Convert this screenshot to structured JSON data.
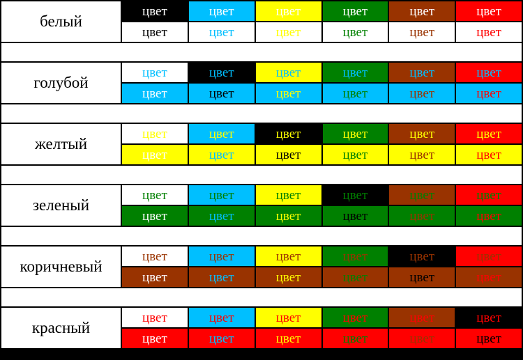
{
  "table": {
    "cell_text": "цвет",
    "palette": {
      "white": "#FFFFFF",
      "blue": "#00BFFF",
      "yellow": "#FFFF00",
      "green": "#008000",
      "brown": "#993300",
      "red": "#FF0000",
      "black": "#000000"
    },
    "groups": [
      {
        "label": "белый",
        "row_color": "#FFFFFF",
        "top": [
          {
            "fg": "#FFFFFF",
            "bg": "#000000"
          },
          {
            "fg": "#FFFFFF",
            "bg": "#00BFFF"
          },
          {
            "fg": "#FFFFFF",
            "bg": "#FFFF00"
          },
          {
            "fg": "#FFFFFF",
            "bg": "#008000"
          },
          {
            "fg": "#FFFFFF",
            "bg": "#993300"
          },
          {
            "fg": "#FFFFFF",
            "bg": "#FF0000"
          }
        ],
        "bottom": [
          {
            "fg": "#000000",
            "bg": "#FFFFFF"
          },
          {
            "fg": "#00BFFF",
            "bg": "#FFFFFF"
          },
          {
            "fg": "#FFFF00",
            "bg": "#FFFFFF"
          },
          {
            "fg": "#008000",
            "bg": "#FFFFFF"
          },
          {
            "fg": "#993300",
            "bg": "#FFFFFF"
          },
          {
            "fg": "#FF0000",
            "bg": "#FFFFFF"
          }
        ]
      },
      {
        "label": "голубой",
        "row_color": "#00BFFF",
        "top": [
          {
            "fg": "#00BFFF",
            "bg": "#FFFFFF"
          },
          {
            "fg": "#00BFFF",
            "bg": "#000000"
          },
          {
            "fg": "#00BFFF",
            "bg": "#FFFF00"
          },
          {
            "fg": "#00BFFF",
            "bg": "#008000"
          },
          {
            "fg": "#00BFFF",
            "bg": "#993300"
          },
          {
            "fg": "#00BFFF",
            "bg": "#FF0000"
          }
        ],
        "bottom": [
          {
            "fg": "#FFFFFF",
            "bg": "#00BFFF"
          },
          {
            "fg": "#000000",
            "bg": "#00BFFF"
          },
          {
            "fg": "#FFFF00",
            "bg": "#00BFFF"
          },
          {
            "fg": "#008000",
            "bg": "#00BFFF"
          },
          {
            "fg": "#993300",
            "bg": "#00BFFF"
          },
          {
            "fg": "#FF0000",
            "bg": "#00BFFF"
          }
        ]
      },
      {
        "label": "желтый",
        "row_color": "#FFFF00",
        "top": [
          {
            "fg": "#FFFF00",
            "bg": "#FFFFFF"
          },
          {
            "fg": "#FFFF00",
            "bg": "#00BFFF"
          },
          {
            "fg": "#FFFF00",
            "bg": "#000000"
          },
          {
            "fg": "#FFFF00",
            "bg": "#008000"
          },
          {
            "fg": "#FFFF00",
            "bg": "#993300"
          },
          {
            "fg": "#FFFF00",
            "bg": "#FF0000"
          }
        ],
        "bottom": [
          {
            "fg": "#FFFFFF",
            "bg": "#FFFF00"
          },
          {
            "fg": "#00BFFF",
            "bg": "#FFFF00"
          },
          {
            "fg": "#000000",
            "bg": "#FFFF00"
          },
          {
            "fg": "#008000",
            "bg": "#FFFF00"
          },
          {
            "fg": "#993300",
            "bg": "#FFFF00"
          },
          {
            "fg": "#FF0000",
            "bg": "#FFFF00"
          }
        ]
      },
      {
        "label": "зеленый",
        "row_color": "#008000",
        "top": [
          {
            "fg": "#008000",
            "bg": "#FFFFFF"
          },
          {
            "fg": "#008000",
            "bg": "#00BFFF"
          },
          {
            "fg": "#008000",
            "bg": "#FFFF00"
          },
          {
            "fg": "#008000",
            "bg": "#000000"
          },
          {
            "fg": "#008000",
            "bg": "#993300"
          },
          {
            "fg": "#008000",
            "bg": "#FF0000"
          }
        ],
        "bottom": [
          {
            "fg": "#FFFFFF",
            "bg": "#008000"
          },
          {
            "fg": "#00BFFF",
            "bg": "#008000"
          },
          {
            "fg": "#FFFF00",
            "bg": "#008000"
          },
          {
            "fg": "#000000",
            "bg": "#008000"
          },
          {
            "fg": "#993300",
            "bg": "#008000"
          },
          {
            "fg": "#FF0000",
            "bg": "#008000"
          }
        ]
      },
      {
        "label": "коричневый",
        "row_color": "#993300",
        "top": [
          {
            "fg": "#993300",
            "bg": "#FFFFFF"
          },
          {
            "fg": "#993300",
            "bg": "#00BFFF"
          },
          {
            "fg": "#993300",
            "bg": "#FFFF00"
          },
          {
            "fg": "#993300",
            "bg": "#008000"
          },
          {
            "fg": "#993300",
            "bg": "#000000"
          },
          {
            "fg": "#993300",
            "bg": "#FF0000"
          }
        ],
        "bottom": [
          {
            "fg": "#FFFFFF",
            "bg": "#993300"
          },
          {
            "fg": "#00BFFF",
            "bg": "#993300"
          },
          {
            "fg": "#FFFF00",
            "bg": "#993300"
          },
          {
            "fg": "#008000",
            "bg": "#993300"
          },
          {
            "fg": "#000000",
            "bg": "#993300"
          },
          {
            "fg": "#FF0000",
            "bg": "#993300"
          }
        ]
      },
      {
        "label": "красный",
        "row_color": "#FF0000",
        "top": [
          {
            "fg": "#FF0000",
            "bg": "#FFFFFF"
          },
          {
            "fg": "#FF0000",
            "bg": "#00BFFF"
          },
          {
            "fg": "#FF0000",
            "bg": "#FFFF00"
          },
          {
            "fg": "#FF0000",
            "bg": "#008000"
          },
          {
            "fg": "#FF0000",
            "bg": "#993300"
          },
          {
            "fg": "#FF0000",
            "bg": "#000000"
          }
        ],
        "bottom": [
          {
            "fg": "#FFFFFF",
            "bg": "#FF0000"
          },
          {
            "fg": "#00BFFF",
            "bg": "#FF0000"
          },
          {
            "fg": "#FFFF00",
            "bg": "#FF0000"
          },
          {
            "fg": "#008000",
            "bg": "#FF0000"
          },
          {
            "fg": "#993300",
            "bg": "#FF0000"
          },
          {
            "fg": "#000000",
            "bg": "#FF0000"
          }
        ]
      }
    ]
  }
}
